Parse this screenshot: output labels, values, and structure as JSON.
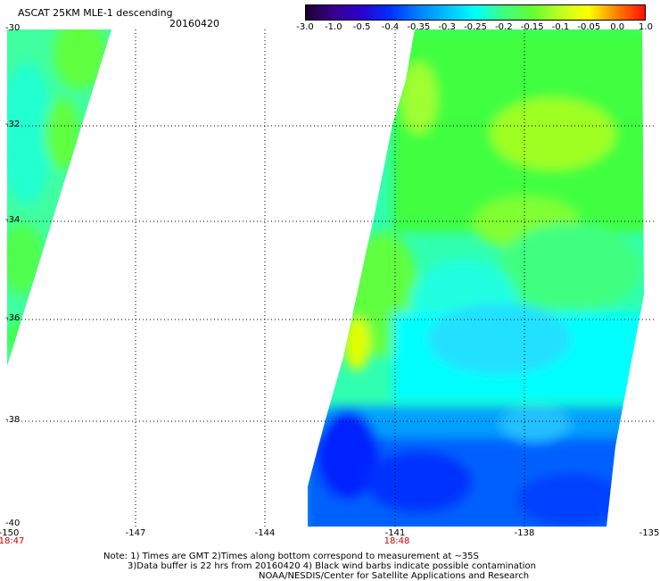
{
  "header": {
    "title": "ASCAT 25KM MLE-1 descending",
    "date": "20160420"
  },
  "colorbar": {
    "labels": [
      "-3.0",
      "-1.0",
      "-0.5",
      "-0.4",
      "-0.35",
      "-0.3",
      "-0.25",
      "-0.2",
      "-0.15",
      "-0.1",
      "-0.05",
      "0.0",
      "1.0"
    ],
    "colors": [
      "#1a0030",
      "#3a0090",
      "#2a00d0",
      "#0030ff",
      "#0080ff",
      "#00c0ff",
      "#00ffff",
      "#40ff80",
      "#60ff30",
      "#c0ff20",
      "#ffff00",
      "#ff8000",
      "#ff1000"
    ]
  },
  "axes": {
    "lat_labels": [
      "-30",
      "-32",
      "-34",
      "-36",
      "-38",
      "-40"
    ],
    "lon_labels": [
      "-150",
      "-147",
      "-144",
      "-141",
      "-138",
      "-135"
    ],
    "time_labels": [
      {
        "text": "18:47",
        "lon": "-150"
      },
      {
        "text": "18:48",
        "lon": "-141"
      }
    ]
  },
  "notes": {
    "line1": "Note: 1) Times are GMT 2)Times along bottom correspond to measurement at ~35S",
    "line2": "3)Data buffer is 22 hrs from 20160420 4) Black wind barbs indicate possible contamination",
    "line3": "NOAA/NESDIS/Center for Satellite Applications and Research"
  },
  "map": {
    "grid": "dotted",
    "swaths": [
      "west-swath",
      "east-swath"
    ],
    "colors": {
      "blue_dark": "#0020ff",
      "blue": "#0060ff",
      "blue_light": "#00a0ff",
      "cyan": "#00ffff",
      "aqua_green": "#40ffa0",
      "green": "#40ff40",
      "yellow_green": "#a0ff20",
      "yellow": "#ffff00"
    }
  }
}
